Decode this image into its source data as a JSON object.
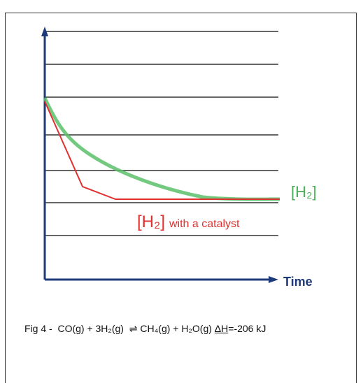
{
  "figure": {
    "curve_labels": {
      "h2": "[H₂]",
      "catalyst_h2": "[H₂]",
      "catalyst_text": "with a catalyst"
    },
    "x_axis_label": "Time",
    "caption": {
      "prefix": "Fig 4 -  CO(g) + 3H₂(g)  ⇌ CH₄(g) + H₂O(g) ",
      "delta_h": "ΔH",
      "suffix": "=-206 kJ"
    }
  }
}
